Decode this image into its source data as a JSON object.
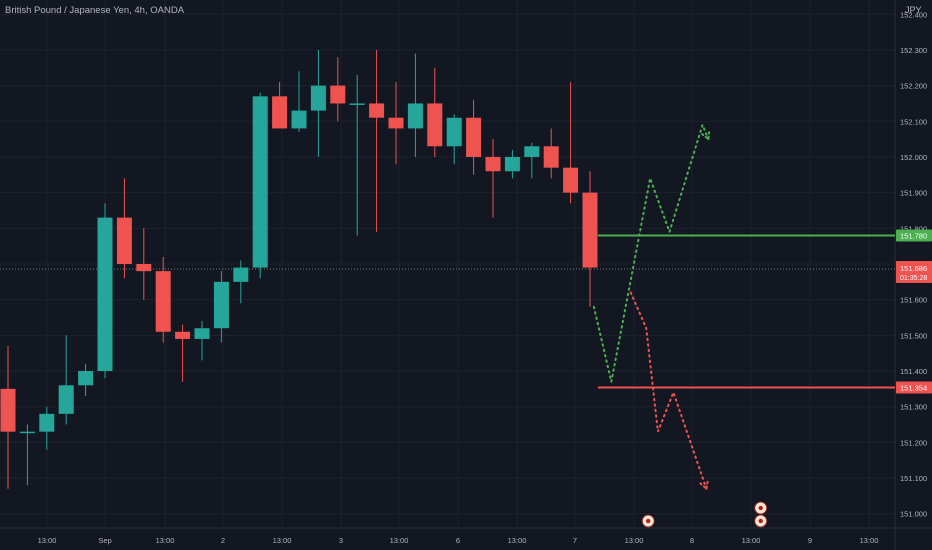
{
  "header": {
    "title": "British Pound / Japanese Yen, 4h, OANDA",
    "currency": "JPY"
  },
  "colors": {
    "background": "#131722",
    "grid": "#1e222d",
    "text": "#b2b5be",
    "up": "#26a69a",
    "down": "#ef5350",
    "target_up": "#4caf50",
    "target_down": "#ef5350"
  },
  "chart_data": {
    "type": "candlestick",
    "title": "British Pound / Japanese Yen, 4h, OANDA",
    "ylim": [
      150.96,
      152.44
    ],
    "y_ticks": [
      "151.000",
      "151.100",
      "151.200",
      "151.300",
      "151.400",
      "151.500",
      "151.600",
      "151.700",
      "151.800",
      "151.900",
      "152.000",
      "152.100",
      "152.200",
      "152.300",
      "152.400"
    ],
    "x_ticks": [
      "13:00",
      "Sep",
      "13:00",
      "2",
      "13:00",
      "3",
      "13:00",
      "6",
      "13:00",
      "7",
      "13:00",
      "8",
      "13:00",
      "9",
      "13:00"
    ],
    "candles": [
      {
        "o": 151.35,
        "h": 151.47,
        "l": 151.07,
        "c": 151.23
      },
      {
        "o": 151.23,
        "h": 151.25,
        "l": 151.08,
        "c": 151.23
      },
      {
        "o": 151.23,
        "h": 151.3,
        "l": 151.18,
        "c": 151.28
      },
      {
        "o": 151.28,
        "h": 151.5,
        "l": 151.25,
        "c": 151.36
      },
      {
        "o": 151.36,
        "h": 151.42,
        "l": 151.33,
        "c": 151.4
      },
      {
        "o": 151.4,
        "h": 151.87,
        "l": 151.38,
        "c": 151.83
      },
      {
        "o": 151.83,
        "h": 151.94,
        "l": 151.66,
        "c": 151.7
      },
      {
        "o": 151.7,
        "h": 151.8,
        "l": 151.6,
        "c": 151.68
      },
      {
        "o": 151.68,
        "h": 151.72,
        "l": 151.48,
        "c": 151.51
      },
      {
        "o": 151.51,
        "h": 151.53,
        "l": 151.37,
        "c": 151.49
      },
      {
        "o": 151.49,
        "h": 151.54,
        "l": 151.43,
        "c": 151.52
      },
      {
        "o": 151.52,
        "h": 151.68,
        "l": 151.48,
        "c": 151.65
      },
      {
        "o": 151.65,
        "h": 151.71,
        "l": 151.59,
        "c": 151.69
      },
      {
        "o": 151.69,
        "h": 152.18,
        "l": 151.66,
        "c": 152.17
      },
      {
        "o": 152.17,
        "h": 152.21,
        "l": 152.08,
        "c": 152.08
      },
      {
        "o": 152.08,
        "h": 152.24,
        "l": 152.07,
        "c": 152.13
      },
      {
        "o": 152.13,
        "h": 152.3,
        "l": 152.0,
        "c": 152.2
      },
      {
        "o": 152.2,
        "h": 152.28,
        "l": 152.1,
        "c": 152.15
      },
      {
        "o": 152.15,
        "h": 152.23,
        "l": 151.78,
        "c": 152.15
      },
      {
        "o": 152.15,
        "h": 152.3,
        "l": 151.79,
        "c": 152.11
      },
      {
        "o": 152.11,
        "h": 152.21,
        "l": 151.98,
        "c": 152.08
      },
      {
        "o": 152.08,
        "h": 152.29,
        "l": 152.0,
        "c": 152.15
      },
      {
        "o": 152.15,
        "h": 152.25,
        "l": 152.0,
        "c": 152.03
      },
      {
        "o": 152.03,
        "h": 152.12,
        "l": 151.98,
        "c": 152.11
      },
      {
        "o": 152.11,
        "h": 152.16,
        "l": 151.95,
        "c": 152.0
      },
      {
        "o": 152.0,
        "h": 152.05,
        "l": 151.83,
        "c": 151.96
      },
      {
        "o": 151.96,
        "h": 152.02,
        "l": 151.94,
        "c": 152.0
      },
      {
        "o": 152.0,
        "h": 152.04,
        "l": 151.94,
        "c": 152.03
      },
      {
        "o": 152.03,
        "h": 152.08,
        "l": 151.94,
        "c": 151.97
      },
      {
        "o": 151.97,
        "h": 152.21,
        "l": 151.87,
        "c": 151.9
      },
      {
        "o": 151.9,
        "h": 151.96,
        "l": 151.58,
        "c": 151.69
      }
    ],
    "price_lines": [
      {
        "value": 151.78,
        "label": "151.780",
        "color": "#4caf50"
      },
      {
        "value": 151.354,
        "label": "151.354",
        "color": "#ef5350"
      }
    ],
    "current_price": {
      "value": 151.686,
      "label": "151.686",
      "countdown": "01:35:28"
    },
    "projection_up": [
      [
        30.2,
        151.58
      ],
      [
        31.1,
        151.37
      ],
      [
        33.1,
        151.94
      ],
      [
        34.1,
        151.79
      ],
      [
        35.8,
        152.09
      ],
      [
        36.1,
        152.05
      ]
    ],
    "projection_down": [
      [
        32.1,
        151.62
      ],
      [
        32.9,
        151.52
      ],
      [
        33.5,
        151.23
      ],
      [
        34.3,
        151.34
      ],
      [
        36.0,
        151.07
      ]
    ],
    "event_markers": [
      {
        "x": 33.0,
        "count": 1
      },
      {
        "x": 38.8,
        "count": 2
      }
    ]
  }
}
